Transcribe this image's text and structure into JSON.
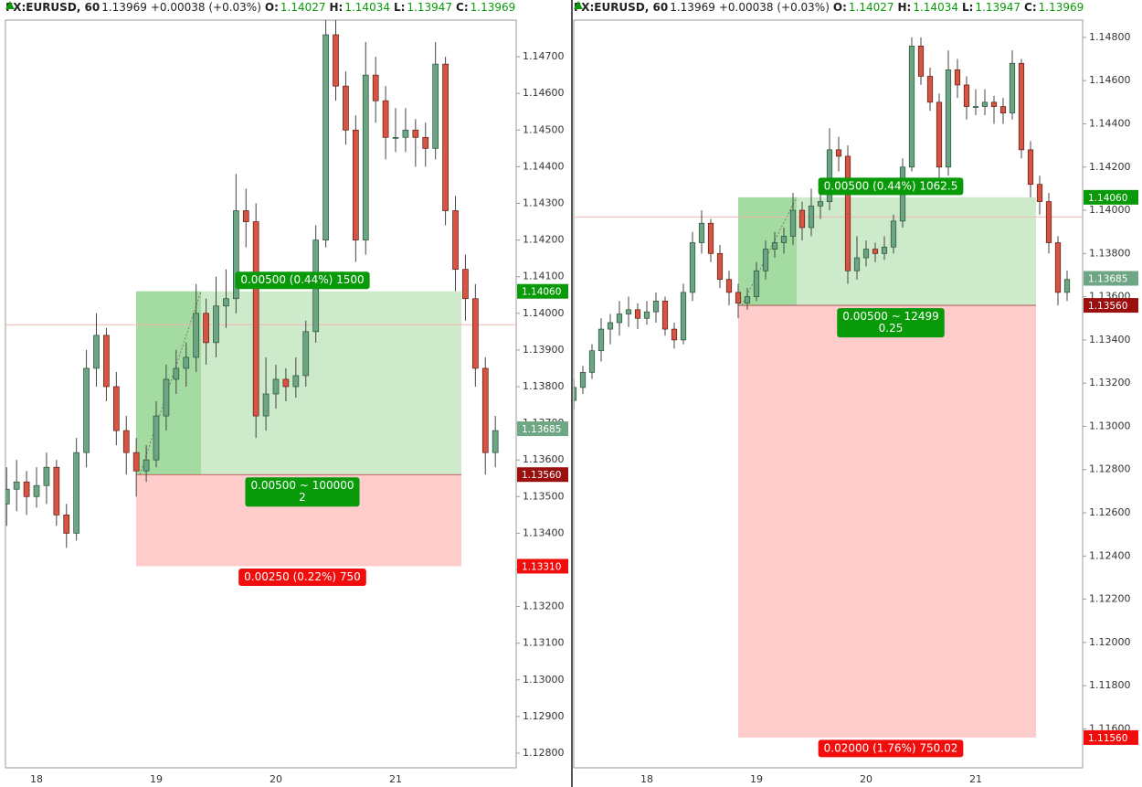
{
  "chart_data": [
    {
      "type": "candlestick",
      "header": {
        "symbol": "FX:EURUSD, 60",
        "last": 1.13969,
        "change": "+0.00038 (+0.03%)",
        "ohlc_labels": [
          "O:",
          "H:",
          "L:",
          "C:"
        ],
        "ohlc": [
          1.14027,
          1.14034,
          1.13947,
          1.13969
        ]
      },
      "categories": [
        null,
        null,
        null,
        "18",
        null,
        null,
        null,
        null,
        null,
        null,
        null,
        null,
        null,
        null,
        null,
        "19",
        null,
        null,
        null,
        null,
        null,
        null,
        null,
        null,
        null,
        null,
        null,
        "20",
        null,
        null,
        null,
        null,
        null,
        null,
        null,
        null,
        null,
        null,
        null,
        "21",
        null,
        null,
        null,
        null,
        null,
        null,
        null,
        null,
        null,
        null
      ],
      "open": [
        1.1348,
        1.1352,
        1.1354,
        1.135,
        1.1353,
        1.1358,
        1.1345,
        1.134,
        1.1362,
        1.1385,
        1.1394,
        1.138,
        1.1368,
        1.1362,
        1.1357,
        1.136,
        1.1372,
        1.1382,
        1.1385,
        1.1388,
        1.14,
        1.1392,
        1.1402,
        1.1404,
        1.1428,
        1.1425,
        1.1372,
        1.1378,
        1.1382,
        1.138,
        1.1383,
        1.1395,
        1.142,
        1.1476,
        1.1462,
        1.145,
        1.142,
        1.1465,
        1.1458,
        1.1448,
        1.1448,
        1.145,
        1.1448,
        1.1445,
        1.1468,
        1.1428,
        1.1412,
        1.1404,
        1.1385,
        1.1362
      ],
      "high": [
        1.1358,
        1.136,
        1.1357,
        1.1358,
        1.1362,
        1.136,
        1.1348,
        1.1366,
        1.139,
        1.14,
        1.1396,
        1.1384,
        1.1372,
        1.1366,
        1.1364,
        1.1376,
        1.1386,
        1.139,
        1.1392,
        1.1408,
        1.1404,
        1.141,
        1.1412,
        1.1438,
        1.1434,
        1.143,
        1.1388,
        1.1386,
        1.1385,
        1.1388,
        1.1398,
        1.1424,
        1.148,
        1.148,
        1.1466,
        1.1454,
        1.1474,
        1.147,
        1.1462,
        1.1456,
        1.1456,
        1.1453,
        1.1452,
        1.1474,
        1.147,
        1.1432,
        1.1416,
        1.1408,
        1.1388,
        1.1372
      ],
      "low": [
        1.1342,
        1.1346,
        1.1345,
        1.1347,
        1.1348,
        1.1342,
        1.1336,
        1.1338,
        1.1358,
        1.138,
        1.1376,
        1.1364,
        1.1356,
        1.135,
        1.1354,
        1.1358,
        1.1368,
        1.1378,
        1.138,
        1.1384,
        1.1386,
        1.1388,
        1.1396,
        1.14,
        1.1418,
        1.1366,
        1.1368,
        1.1374,
        1.1376,
        1.1377,
        1.138,
        1.1392,
        1.1418,
        1.1458,
        1.1446,
        1.1414,
        1.1416,
        1.1452,
        1.1442,
        1.1444,
        1.1444,
        1.144,
        1.144,
        1.1442,
        1.1424,
        1.1406,
        1.1398,
        1.138,
        1.1356,
        1.1358
      ],
      "close": [
        1.1352,
        1.1354,
        1.135,
        1.1353,
        1.1358,
        1.1345,
        1.134,
        1.1362,
        1.1385,
        1.1394,
        1.138,
        1.1368,
        1.1362,
        1.1357,
        1.136,
        1.1372,
        1.1382,
        1.1385,
        1.1388,
        1.14,
        1.1392,
        1.1402,
        1.1404,
        1.1428,
        1.1425,
        1.1372,
        1.1378,
        1.1382,
        1.138,
        1.1383,
        1.1395,
        1.142,
        1.1476,
        1.1462,
        1.145,
        1.142,
        1.1465,
        1.1458,
        1.1448,
        1.1448,
        1.145,
        1.1448,
        1.1445,
        1.1468,
        1.1428,
        1.1412,
        1.1404,
        1.1385,
        1.1362,
        1.1368
      ],
      "up_color": "#6ba583",
      "down_color": "#d75442",
      "ylim": [
        1.1276,
        1.148
      ],
      "yticks": [
        {
          "value": 1.128,
          "label": "1.12800"
        },
        {
          "value": 1.129,
          "label": "1.12900"
        },
        {
          "value": 1.13,
          "label": "1.13000"
        },
        {
          "value": 1.131,
          "label": "1.13100"
        },
        {
          "value": 1.132,
          "label": "1.13200"
        },
        {
          "value": 1.133,
          "label": "1.13300"
        },
        {
          "value": 1.134,
          "label": "1.13400"
        },
        {
          "value": 1.135,
          "label": "1.13500"
        },
        {
          "value": 1.136,
          "label": "1.13600"
        },
        {
          "value": 1.137,
          "label": "1.13700"
        },
        {
          "value": 1.138,
          "label": "1.13800"
        },
        {
          "value": 1.139,
          "label": "1.13900"
        },
        {
          "value": 1.14,
          "label": "1.14000"
        },
        {
          "value": 1.141,
          "label": "1.14100"
        },
        {
          "value": 1.142,
          "label": "1.14200"
        },
        {
          "value": 1.143,
          "label": "1.14300"
        },
        {
          "value": 1.144,
          "label": "1.14400"
        },
        {
          "value": 1.145,
          "label": "1.14500"
        },
        {
          "value": 1.146,
          "label": "1.14600"
        },
        {
          "value": 1.147,
          "label": "1.14700"
        }
      ],
      "current_price": 1.13685,
      "position": {
        "target": {
          "value": 1.1406,
          "label": "1.14060"
        },
        "entry": {
          "value": 1.1356,
          "label": "1.13560"
        },
        "stop": {
          "value": 1.1331,
          "label": "1.13310"
        },
        "target_text": "0.00500 (0.44%) 1500",
        "entry_text": [
          "0.00500 ~ 100000",
          "2"
        ],
        "stop_text": "0.00250 (0.22%) 750"
      },
      "colors": {
        "target": "#089a08",
        "current": "#6fa683",
        "entry": "#9b0f0f",
        "stop": "#f20d0d",
        "profit_zone": "#cdeacb",
        "profit_reached": "#a4dba1",
        "loss_zone": "#ffcccc",
        "last_line": "#f0b8b0"
      }
    },
    {
      "type": "candlestick",
      "header": {
        "symbol": "FX:EURUSD, 60",
        "last": 1.13969,
        "change": "+0.00038 (+0.03%)",
        "ohlc_labels": [
          "O:",
          "H:",
          "L:",
          "C:"
        ],
        "ohlc": [
          1.14027,
          1.14034,
          1.13947,
          1.13969
        ]
      },
      "categories": [
        null,
        null,
        null,
        null,
        null,
        null,
        null,
        null,
        "18",
        null,
        null,
        null,
        null,
        null,
        null,
        null,
        null,
        null,
        null,
        null,
        "19",
        null,
        null,
        null,
        null,
        null,
        null,
        null,
        null,
        null,
        null,
        null,
        "20",
        null,
        null,
        null,
        null,
        null,
        null,
        null,
        null,
        null,
        null,
        null,
        "21",
        null,
        null,
        null,
        null,
        null,
        null,
        null,
        null,
        null,
        null
      ],
      "open": [
        1.1312,
        1.1318,
        1.1325,
        1.1335,
        1.1345,
        1.1348,
        1.1352,
        1.1354,
        1.135,
        1.1353,
        1.1358,
        1.1345,
        1.134,
        1.1362,
        1.1385,
        1.1394,
        1.138,
        1.1368,
        1.1362,
        1.1357,
        1.136,
        1.1372,
        1.1382,
        1.1385,
        1.1388,
        1.14,
        1.1392,
        1.1402,
        1.1404,
        1.1428,
        1.1425,
        1.1372,
        1.1378,
        1.1382,
        1.138,
        1.1383,
        1.1395,
        1.142,
        1.1476,
        1.1462,
        1.145,
        1.142,
        1.1465,
        1.1458,
        1.1448,
        1.1448,
        1.145,
        1.1448,
        1.1445,
        1.1468,
        1.1428,
        1.1412,
        1.1404,
        1.1385,
        1.1362
      ],
      "high": [
        1.1322,
        1.1328,
        1.1338,
        1.135,
        1.1352,
        1.1358,
        1.136,
        1.1357,
        1.1358,
        1.1362,
        1.136,
        1.1348,
        1.1366,
        1.139,
        1.14,
        1.1396,
        1.1384,
        1.1372,
        1.1366,
        1.1364,
        1.1376,
        1.1386,
        1.139,
        1.1392,
        1.1408,
        1.1404,
        1.141,
        1.1412,
        1.1438,
        1.1434,
        1.143,
        1.1388,
        1.1386,
        1.1385,
        1.1388,
        1.1398,
        1.1424,
        1.148,
        1.148,
        1.1466,
        1.1454,
        1.1474,
        1.147,
        1.1462,
        1.1456,
        1.1456,
        1.1453,
        1.1452,
        1.1474,
        1.147,
        1.1432,
        1.1416,
        1.1408,
        1.1388,
        1.1372
      ],
      "low": [
        1.1308,
        1.1315,
        1.1322,
        1.133,
        1.1338,
        1.1342,
        1.1346,
        1.1345,
        1.1347,
        1.1348,
        1.1342,
        1.1336,
        1.1338,
        1.1358,
        1.138,
        1.1376,
        1.1364,
        1.1356,
        1.135,
        1.1354,
        1.1358,
        1.1368,
        1.1378,
        1.138,
        1.1384,
        1.1386,
        1.1388,
        1.1396,
        1.14,
        1.1418,
        1.1366,
        1.1368,
        1.1374,
        1.1376,
        1.1377,
        1.138,
        1.1392,
        1.1418,
        1.1458,
        1.1446,
        1.1414,
        1.1416,
        1.1452,
        1.1442,
        1.1444,
        1.1444,
        1.144,
        1.144,
        1.1442,
        1.1424,
        1.1406,
        1.1398,
        1.138,
        1.1356,
        1.1358
      ],
      "close": [
        1.1318,
        1.1325,
        1.1335,
        1.1345,
        1.1348,
        1.1352,
        1.1354,
        1.135,
        1.1353,
        1.1358,
        1.1345,
        1.134,
        1.1362,
        1.1385,
        1.1394,
        1.138,
        1.1368,
        1.1362,
        1.1357,
        1.136,
        1.1372,
        1.1382,
        1.1385,
        1.1388,
        1.14,
        1.1392,
        1.1402,
        1.1404,
        1.1428,
        1.1425,
        1.1372,
        1.1378,
        1.1382,
        1.138,
        1.1383,
        1.1395,
        1.142,
        1.1476,
        1.1462,
        1.145,
        1.142,
        1.1465,
        1.1458,
        1.1448,
        1.1448,
        1.145,
        1.1448,
        1.1445,
        1.1468,
        1.1428,
        1.1412,
        1.1404,
        1.1385,
        1.1362,
        1.1368
      ],
      "up_color": "#6ba583",
      "down_color": "#d75442",
      "ylim": [
        1.1142,
        1.1488
      ],
      "yticks": [
        {
          "value": 1.116,
          "label": "1.11600"
        },
        {
          "value": 1.118,
          "label": "1.11800"
        },
        {
          "value": 1.12,
          "label": "1.12000"
        },
        {
          "value": 1.122,
          "label": "1.12200"
        },
        {
          "value": 1.124,
          "label": "1.12400"
        },
        {
          "value": 1.126,
          "label": "1.12600"
        },
        {
          "value": 1.128,
          "label": "1.12800"
        },
        {
          "value": 1.13,
          "label": "1.13000"
        },
        {
          "value": 1.132,
          "label": "1.13200"
        },
        {
          "value": 1.134,
          "label": "1.13400"
        },
        {
          "value": 1.136,
          "label": "1.13600"
        },
        {
          "value": 1.138,
          "label": "1.13800"
        },
        {
          "value": 1.14,
          "label": "1.14000"
        },
        {
          "value": 1.142,
          "label": "1.14200"
        },
        {
          "value": 1.144,
          "label": "1.14400"
        },
        {
          "value": 1.146,
          "label": "1.14600"
        },
        {
          "value": 1.148,
          "label": "1.14800"
        }
      ],
      "current_price": 1.13685,
      "position": {
        "target": {
          "value": 1.1406,
          "label": "1.14060"
        },
        "entry": {
          "value": 1.1356,
          "label": "1.13560"
        },
        "stop": {
          "value": 1.1156,
          "label": "1.11560"
        },
        "target_text": "0.00500 (0.44%) 1062.5",
        "entry_text": [
          "0.00500 ~ 12499",
          "0.25"
        ],
        "stop_text": "0.02000 (1.76%) 750.02"
      },
      "colors": {
        "target": "#089a08",
        "current": "#6fa683",
        "entry": "#9b0f0f",
        "stop": "#f20d0d",
        "profit_zone": "#cdeacb",
        "profit_reached": "#a4dba1",
        "loss_zone": "#ffcccc",
        "last_line": "#f0b8b0"
      }
    }
  ]
}
